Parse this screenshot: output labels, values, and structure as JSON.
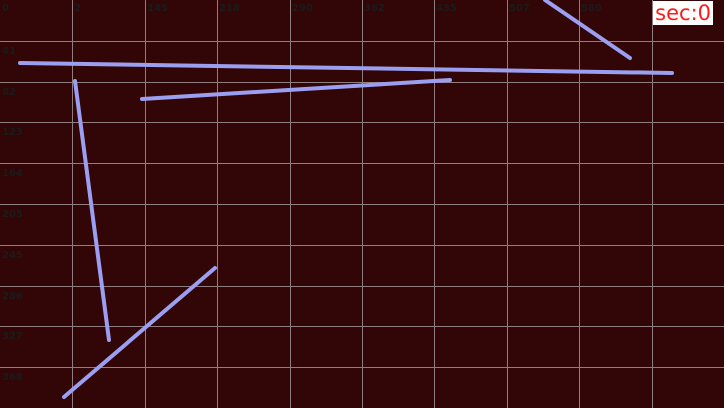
{
  "x_axis_labels": [
    "0",
    "2",
    "145",
    "218",
    "290",
    "362",
    "435",
    "507",
    "580"
  ],
  "y_axis_labels": [
    "41",
    "82",
    "123",
    "164",
    "205",
    "245",
    "286",
    "327",
    "368"
  ],
  "timer": {
    "label": "sec:0",
    "text_color": "#ff1a1a",
    "background": "#ffffff"
  },
  "colors": {
    "background": "#320506",
    "grid_line": "#8f7f80",
    "label_text": "#1b1b1b",
    "stroke": "#9b9ff2"
  },
  "strokes_note": "Five drawn line strokes on the grid"
}
